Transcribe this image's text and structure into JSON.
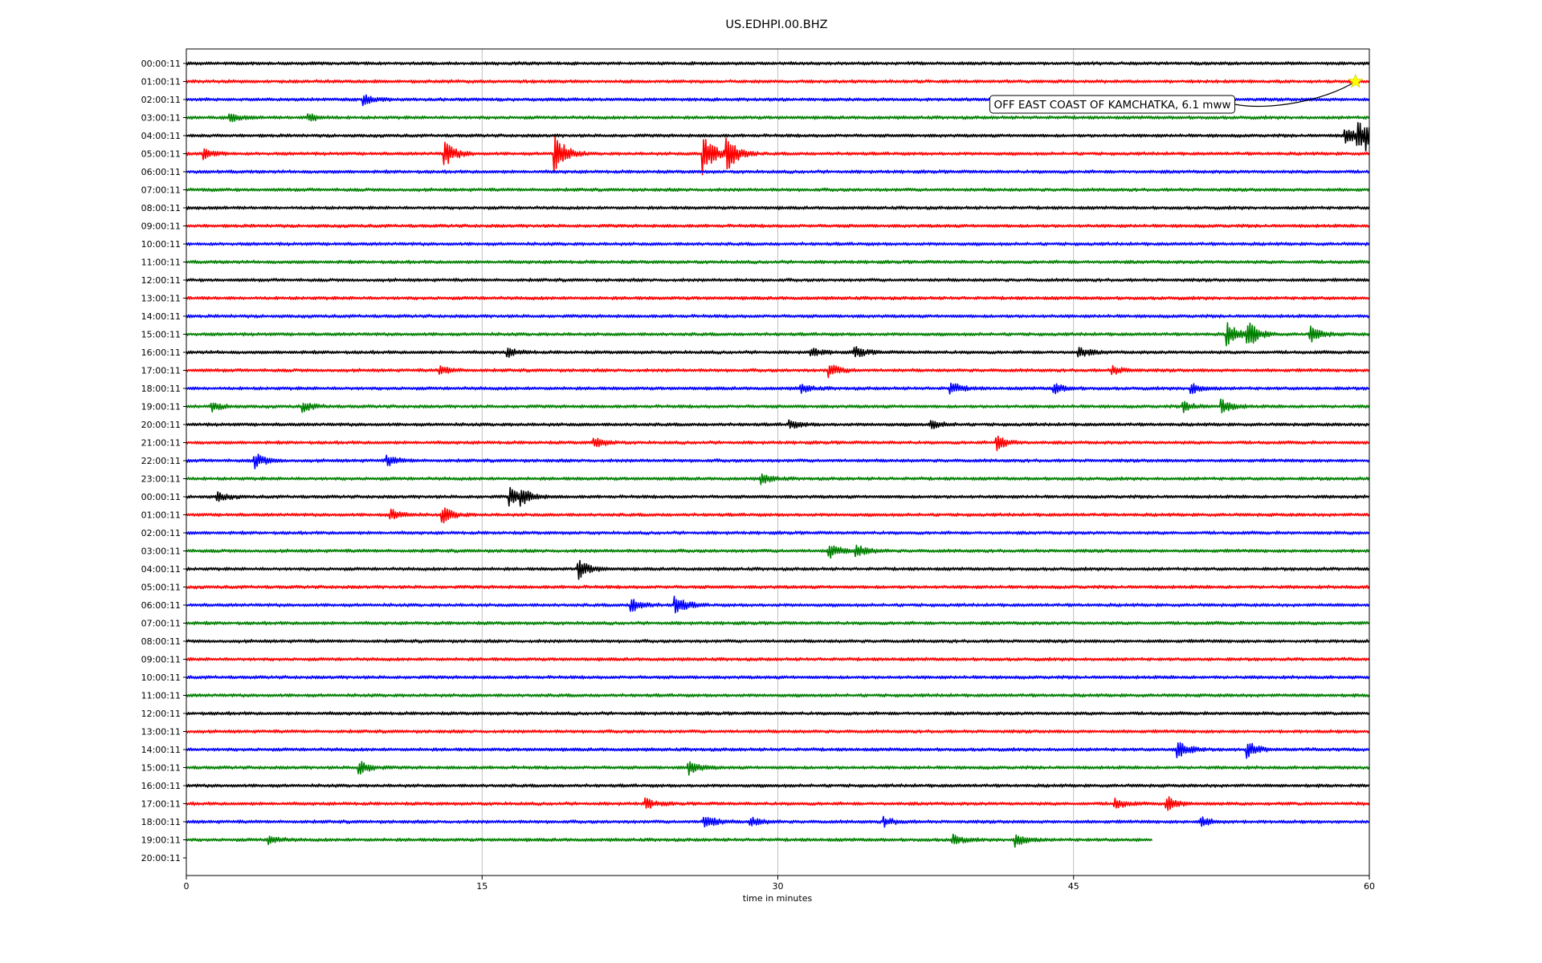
{
  "chart_data": {
    "type": "line",
    "title": "US.EDHPI.00.BHZ",
    "xlabel": "time in minutes",
    "ylabel": "",
    "xlim": [
      0,
      60
    ],
    "x_ticks": [
      0,
      15,
      30,
      45,
      60
    ],
    "grid": "vertical",
    "row_labels": [
      "00:00:11",
      "01:00:11",
      "02:00:11",
      "03:00:11",
      "04:00:11",
      "05:00:11",
      "06:00:11",
      "07:00:11",
      "08:00:11",
      "09:00:11",
      "10:00:11",
      "11:00:11",
      "12:00:11",
      "13:00:11",
      "14:00:11",
      "15:00:11",
      "16:00:11",
      "17:00:11",
      "18:00:11",
      "19:00:11",
      "20:00:11",
      "21:00:11",
      "22:00:11",
      "23:00:11",
      "00:00:11",
      "01:00:11",
      "02:00:11",
      "03:00:11",
      "04:00:11",
      "05:00:11",
      "06:00:11",
      "07:00:11",
      "08:00:11",
      "09:00:11",
      "10:00:11",
      "11:00:11",
      "12:00:11",
      "13:00:11",
      "14:00:11",
      "15:00:11",
      "16:00:11",
      "17:00:11",
      "18:00:11",
      "19:00:11",
      "20:00:11"
    ],
    "trace_colors": [
      "#000000",
      "#ff0000",
      "#0000ff",
      "#008000"
    ],
    "last_trace_end_minute": 49,
    "annotation": {
      "text": "OFF EAST COAST OF KAMCHATKA, 6.1 mww",
      "event_row": 1,
      "event_minute": 59.3,
      "marker_color": "#ffff00"
    },
    "events": [
      {
        "row": 2,
        "minute": 9.0,
        "amp": 6
      },
      {
        "row": 3,
        "minute": 2.2,
        "amp": 5
      },
      {
        "row": 3,
        "minute": 6.2,
        "amp": 5
      },
      {
        "row": 4,
        "minute": 58.8,
        "amp": 10
      },
      {
        "row": 4,
        "minute": 59.4,
        "amp": 18
      },
      {
        "row": 4,
        "minute": 59.9,
        "amp": 12
      },
      {
        "row": 5,
        "minute": 0.9,
        "amp": 6
      },
      {
        "row": 5,
        "minute": 13.1,
        "amp": 16
      },
      {
        "row": 5,
        "minute": 18.7,
        "amp": 26
      },
      {
        "row": 5,
        "minute": 26.2,
        "amp": 30
      },
      {
        "row": 5,
        "minute": 27.4,
        "amp": 26
      },
      {
        "row": 15,
        "minute": 52.8,
        "amp": 14
      },
      {
        "row": 15,
        "minute": 53.8,
        "amp": 18
      },
      {
        "row": 15,
        "minute": 57.0,
        "amp": 10
      },
      {
        "row": 16,
        "minute": 16.3,
        "amp": 5
      },
      {
        "row": 16,
        "minute": 31.7,
        "amp": 5
      },
      {
        "row": 16,
        "minute": 33.9,
        "amp": 7
      },
      {
        "row": 16,
        "minute": 45.3,
        "amp": 6
      },
      {
        "row": 17,
        "minute": 12.9,
        "amp": 5
      },
      {
        "row": 17,
        "minute": 32.6,
        "amp": 8
      },
      {
        "row": 17,
        "minute": 47.0,
        "amp": 5
      },
      {
        "row": 18,
        "minute": 31.2,
        "amp": 5
      },
      {
        "row": 18,
        "minute": 38.8,
        "amp": 7
      },
      {
        "row": 18,
        "minute": 44.0,
        "amp": 6
      },
      {
        "row": 18,
        "minute": 51.0,
        "amp": 6
      },
      {
        "row": 19,
        "minute": 1.3,
        "amp": 5
      },
      {
        "row": 19,
        "minute": 5.9,
        "amp": 6
      },
      {
        "row": 19,
        "minute": 50.6,
        "amp": 6
      },
      {
        "row": 19,
        "minute": 52.5,
        "amp": 8
      },
      {
        "row": 20,
        "minute": 30.6,
        "amp": 5
      },
      {
        "row": 20,
        "minute": 37.8,
        "amp": 5
      },
      {
        "row": 21,
        "minute": 20.7,
        "amp": 6
      },
      {
        "row": 21,
        "minute": 41.1,
        "amp": 9
      },
      {
        "row": 22,
        "minute": 3.5,
        "amp": 9
      },
      {
        "row": 22,
        "minute": 10.2,
        "amp": 6
      },
      {
        "row": 23,
        "minute": 29.2,
        "amp": 6
      },
      {
        "row": 24,
        "minute": 1.6,
        "amp": 5
      },
      {
        "row": 24,
        "minute": 16.4,
        "amp": 11
      },
      {
        "row": 24,
        "minute": 17.0,
        "amp": 8
      },
      {
        "row": 25,
        "minute": 10.4,
        "amp": 6
      },
      {
        "row": 25,
        "minute": 13.0,
        "amp": 10
      },
      {
        "row": 27,
        "minute": 32.6,
        "amp": 9
      },
      {
        "row": 27,
        "minute": 34.0,
        "amp": 8
      },
      {
        "row": 28,
        "minute": 19.9,
        "amp": 12
      },
      {
        "row": 30,
        "minute": 22.6,
        "amp": 8
      },
      {
        "row": 30,
        "minute": 24.8,
        "amp": 12
      },
      {
        "row": 38,
        "minute": 50.3,
        "amp": 12
      },
      {
        "row": 38,
        "minute": 53.8,
        "amp": 10
      },
      {
        "row": 39,
        "minute": 8.8,
        "amp": 8
      },
      {
        "row": 39,
        "minute": 25.5,
        "amp": 8
      },
      {
        "row": 41,
        "minute": 23.3,
        "amp": 6
      },
      {
        "row": 41,
        "minute": 47.1,
        "amp": 6
      },
      {
        "row": 41,
        "minute": 49.7,
        "amp": 9
      },
      {
        "row": 42,
        "minute": 26.3,
        "amp": 9
      },
      {
        "row": 42,
        "minute": 28.6,
        "amp": 6
      },
      {
        "row": 42,
        "minute": 35.4,
        "amp": 5
      },
      {
        "row": 42,
        "minute": 51.5,
        "amp": 6
      },
      {
        "row": 43,
        "minute": 4.2,
        "amp": 5
      },
      {
        "row": 43,
        "minute": 38.9,
        "amp": 6
      },
      {
        "row": 43,
        "minute": 42.1,
        "amp": 8
      }
    ]
  }
}
